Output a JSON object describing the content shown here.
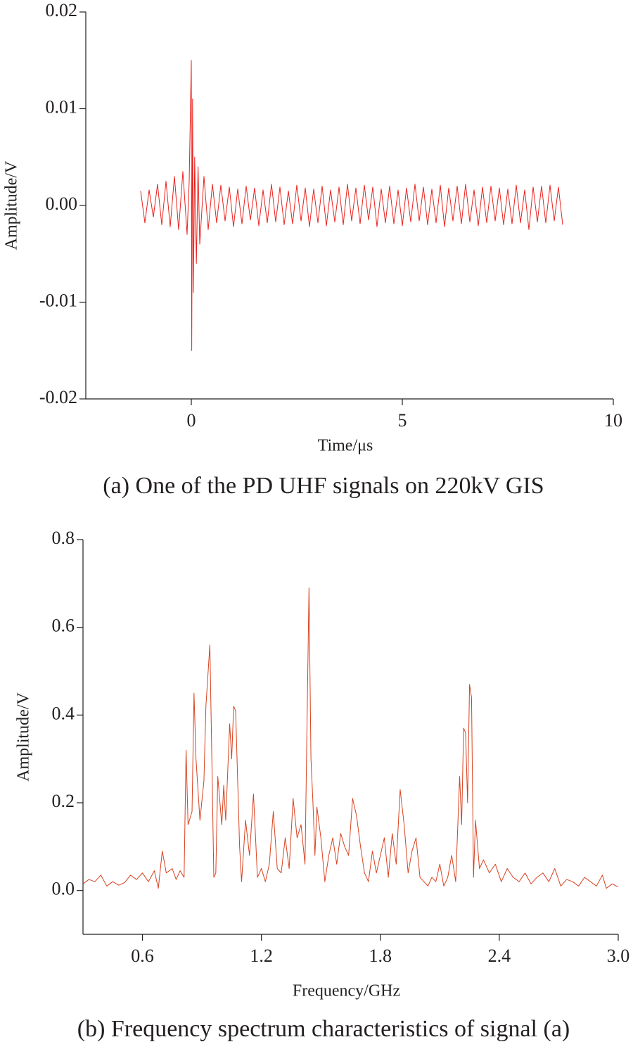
{
  "chart_data": [
    {
      "type": "line",
      "caption": "(a) One of the PD UHF signals on 220kV GIS",
      "xlabel": "Time/μs",
      "ylabel": "Amplitude/V",
      "color": "#e8211d",
      "xlim": [
        -2.5,
        10
      ],
      "xticks": [
        0,
        5,
        10
      ],
      "ylim": [
        -0.02,
        0.02
      ],
      "yticks": [
        -0.02,
        -0.01,
        {
          "value": 0,
          "label": "0.00"
        },
        0.01,
        0.02
      ],
      "x": [
        -1.2,
        -1.1,
        -1.0,
        -0.9,
        -0.8,
        -0.7,
        -0.6,
        -0.5,
        -0.4,
        -0.3,
        -0.2,
        -0.1,
        -0.05,
        0,
        0.01,
        0.03,
        0.05,
        0.08,
        0.12,
        0.16,
        0.2,
        0.3,
        0.4,
        0.5,
        0.6,
        0.7,
        0.8,
        0.9,
        1.0,
        1.1,
        1.2,
        1.3,
        1.4,
        1.5,
        1.6,
        1.7,
        1.8,
        1.9,
        2.0,
        2.1,
        2.2,
        2.3,
        2.4,
        2.5,
        2.6,
        2.7,
        2.8,
        2.9,
        3.0,
        3.1,
        3.2,
        3.3,
        3.4,
        3.5,
        3.6,
        3.7,
        3.8,
        3.9,
        4.0,
        4.1,
        4.2,
        4.3,
        4.4,
        4.5,
        4.6,
        4.7,
        4.8,
        4.9,
        5.0,
        5.1,
        5.2,
        5.3,
        5.4,
        5.5,
        5.6,
        5.7,
        5.8,
        5.9,
        6.0,
        6.1,
        6.2,
        6.3,
        6.4,
        6.5,
        6.6,
        6.7,
        6.8,
        6.9,
        7.0,
        7.1,
        7.2,
        7.3,
        7.4,
        7.5,
        7.6,
        7.7,
        7.8,
        7.9,
        8.0,
        8.1,
        8.2,
        8.3,
        8.4,
        8.5,
        8.6,
        8.7,
        8.8
      ],
      "values": [
        0.0015,
        -0.0018,
        0.0016,
        -0.0012,
        0.0022,
        -0.002,
        0.0025,
        -0.0022,
        0.003,
        -0.0025,
        0.0035,
        -0.003,
        0.0025,
        0.015,
        -0.015,
        0.011,
        -0.009,
        0.005,
        -0.006,
        0.004,
        -0.004,
        0.003,
        -0.0025,
        0.0022,
        -0.0018,
        0.0021,
        -0.0016,
        0.0019,
        -0.0022,
        0.0017,
        -0.0019,
        0.002,
        -0.0015,
        0.0018,
        -0.0021,
        0.0016,
        -0.0018,
        0.0022,
        -0.0017,
        0.0019,
        -0.002,
        0.0015,
        -0.0019,
        0.0021,
        -0.0016,
        0.0018,
        -0.0022,
        0.0017,
        -0.0018,
        0.002,
        -0.0021,
        0.0016,
        -0.0017,
        0.0019,
        -0.002,
        0.0022,
        -0.0016,
        0.0018,
        -0.0019,
        0.0021,
        -0.0015,
        0.0019,
        -0.0022,
        0.0017,
        -0.0018,
        0.002,
        -0.0019,
        0.0016,
        -0.0021,
        0.0018,
        -0.0017,
        0.0022,
        -0.0016,
        0.0019,
        -0.002,
        0.0017,
        -0.0018,
        0.0021,
        -0.0022,
        0.0018,
        -0.0016,
        0.002,
        -0.0019,
        0.0022,
        -0.0017,
        0.0016,
        -0.0021,
        0.0019,
        -0.0018,
        0.002,
        -0.0016,
        0.0018,
        -0.002,
        0.0017,
        -0.0019,
        0.0021,
        -0.0018,
        0.0016,
        -0.0025,
        0.0019,
        -0.0017,
        0.002,
        -0.0018,
        0.0021,
        -0.0016,
        0.0019,
        -0.002
      ]
    },
    {
      "type": "line",
      "caption": "(b) Frequency spectrum characteristics of signal (a)",
      "xlabel": "Frequency/GHz",
      "ylabel": "Amplitude/V",
      "color": "#d9411e",
      "xlim": [
        0.3,
        3.0
      ],
      "xticks": [
        0.6,
        1.2,
        1.8,
        2.4,
        {
          "value": 3.0,
          "label": "3.0"
        }
      ],
      "ylim": [
        -0.1,
        0.8
      ],
      "yticks": [
        {
          "value": 0,
          "label": "0.0"
        },
        0.2,
        0.4,
        0.6,
        0.8
      ],
      "x": [
        0.3,
        0.33,
        0.36,
        0.39,
        0.42,
        0.45,
        0.48,
        0.51,
        0.54,
        0.57,
        0.6,
        0.63,
        0.66,
        0.68,
        0.7,
        0.72,
        0.75,
        0.77,
        0.79,
        0.81,
        0.82,
        0.83,
        0.85,
        0.86,
        0.87,
        0.89,
        0.91,
        0.92,
        0.94,
        0.95,
        0.96,
        0.97,
        0.98,
        1.0,
        1.01,
        1.02,
        1.04,
        1.05,
        1.06,
        1.07,
        1.09,
        1.1,
        1.12,
        1.14,
        1.16,
        1.18,
        1.2,
        1.22,
        1.24,
        1.26,
        1.28,
        1.3,
        1.32,
        1.34,
        1.36,
        1.38,
        1.4,
        1.42,
        1.44,
        1.45,
        1.46,
        1.47,
        1.48,
        1.5,
        1.52,
        1.54,
        1.56,
        1.58,
        1.6,
        1.62,
        1.64,
        1.66,
        1.68,
        1.7,
        1.72,
        1.74,
        1.76,
        1.78,
        1.8,
        1.82,
        1.84,
        1.86,
        1.88,
        1.9,
        1.92,
        1.94,
        1.96,
        1.98,
        2.0,
        2.02,
        2.04,
        2.06,
        2.08,
        2.1,
        2.12,
        2.14,
        2.16,
        2.18,
        2.2,
        2.21,
        2.22,
        2.23,
        2.24,
        2.25,
        2.26,
        2.27,
        2.28,
        2.3,
        2.32,
        2.35,
        2.38,
        2.41,
        2.44,
        2.47,
        2.5,
        2.53,
        2.56,
        2.59,
        2.62,
        2.65,
        2.68,
        2.71,
        2.74,
        2.77,
        2.8,
        2.83,
        2.86,
        2.89,
        2.92,
        2.94,
        2.97,
        3.0
      ],
      "values": [
        0.015,
        0.025,
        0.02,
        0.035,
        0.01,
        0.02,
        0.012,
        0.018,
        0.035,
        0.025,
        0.04,
        0.02,
        0.045,
        0.005,
        0.09,
        0.04,
        0.05,
        0.025,
        0.045,
        0.03,
        0.32,
        0.15,
        0.18,
        0.45,
        0.3,
        0.16,
        0.25,
        0.42,
        0.56,
        0.3,
        0.03,
        0.04,
        0.26,
        0.15,
        0.24,
        0.16,
        0.38,
        0.3,
        0.42,
        0.41,
        0.1,
        0.02,
        0.16,
        0.08,
        0.22,
        0.03,
        0.05,
        0.02,
        0.06,
        0.18,
        0.05,
        0.04,
        0.12,
        0.05,
        0.21,
        0.12,
        0.15,
        0.06,
        0.69,
        0.3,
        0.2,
        0.08,
        0.19,
        0.12,
        0.02,
        0.08,
        0.12,
        0.06,
        0.13,
        0.1,
        0.08,
        0.21,
        0.17,
        0.1,
        0.04,
        0.02,
        0.09,
        0.04,
        0.08,
        0.12,
        0.03,
        0.13,
        0.06,
        0.23,
        0.15,
        0.04,
        0.09,
        0.12,
        0.03,
        0.02,
        0.01,
        0.03,
        0.02,
        0.06,
        0.01,
        0.03,
        0.08,
        0.02,
        0.26,
        0.15,
        0.37,
        0.36,
        0.2,
        0.47,
        0.44,
        0.03,
        0.16,
        0.05,
        0.07,
        0.04,
        0.06,
        0.02,
        0.05,
        0.03,
        0.02,
        0.04,
        0.015,
        0.03,
        0.04,
        0.02,
        0.05,
        0.01,
        0.025,
        0.02,
        0.01,
        0.03,
        0.02,
        0.01,
        0.035,
        0.005,
        0.015,
        0.008
      ]
    }
  ]
}
